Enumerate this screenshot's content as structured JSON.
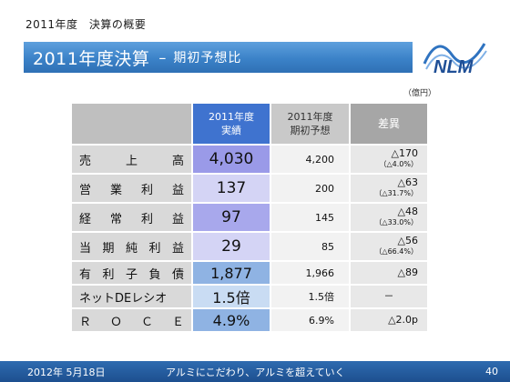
{
  "header": {
    "year": "2011年度",
    "subtitle": "決算の概要",
    "title": "2011年度決算",
    "dash": "–",
    "title_sub": "期初予想比"
  },
  "logo": {
    "text": "NLM"
  },
  "unit": "（億円）",
  "table": {
    "columns": [
      {
        "line1": "2011年度",
        "line2": "実績"
      },
      {
        "line1": "2011年度",
        "line2": "期初予想"
      },
      {
        "line1": "差異",
        "line2": ""
      }
    ],
    "rows": [
      {
        "label": [
          "売",
          "上",
          "高"
        ],
        "actual": "4,030",
        "forecast": "4,200",
        "diff": "△170",
        "diff_pct": "（△4.0%）",
        "actual_color": "#9a9ae8"
      },
      {
        "label": [
          "営",
          "業",
          "利",
          "益"
        ],
        "actual": "137",
        "forecast": "200",
        "diff": "△63",
        "diff_pct": "（△31.7%）",
        "actual_color": "#d4d4f5"
      },
      {
        "label": [
          "経",
          "常",
          "利",
          "益"
        ],
        "actual": "97",
        "forecast": "145",
        "diff": "△48",
        "diff_pct": "（△33.0%）",
        "actual_color": "#a8a8ec"
      },
      {
        "label": [
          "当",
          "期",
          "純",
          "利",
          "益"
        ],
        "actual": "29",
        "forecast": "85",
        "diff": "△56",
        "diff_pct": "（△66.4%）",
        "actual_color": "#d4d4f5"
      },
      {
        "label": [
          "有",
          "利",
          "子",
          "負",
          "債"
        ],
        "actual": "1,877",
        "forecast": "1,966",
        "diff": "△89",
        "diff_pct": "",
        "actual_color": "#8fb3e3"
      },
      {
        "label": [
          "ネットDEレシオ"
        ],
        "actual": "1.5倍",
        "forecast": "1.5倍",
        "diff": "－",
        "diff_pct": "",
        "actual_color": "#c9dcf3"
      },
      {
        "label": [
          "Ｒ",
          "Ｏ",
          "Ｃ",
          "Ｅ"
        ],
        "actual": "4.9%",
        "forecast": "6.9%",
        "diff": "△2.0p",
        "diff_pct": "",
        "actual_color": "#8fb3e3"
      }
    ]
  },
  "footer": {
    "date": "2012年 5月18日",
    "slogan": "アルミにこだわり、アルミを超えていく",
    "page": "40"
  }
}
